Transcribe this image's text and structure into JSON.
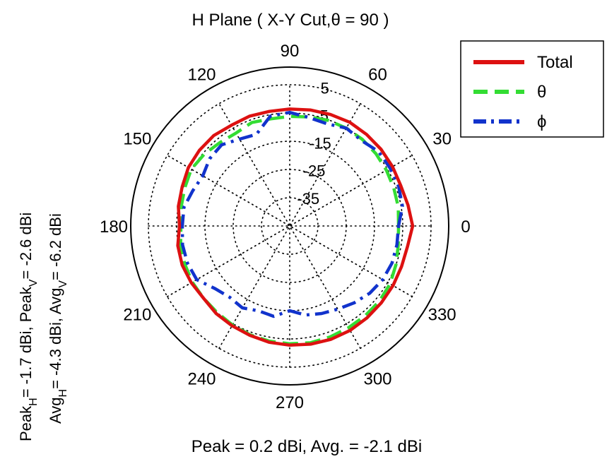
{
  "chart_data": {
    "type": "polar",
    "title": "H Plane ( X-Y Cut,θ = 90 )",
    "r_axis": {
      "min": -45,
      "max": 5,
      "ticks": [
        -35,
        -25,
        -15,
        -5,
        5
      ],
      "tick_angle_deg": 78
    },
    "angle_ticks": [
      0,
      30,
      60,
      90,
      120,
      150,
      180,
      210,
      240,
      270,
      300,
      330
    ],
    "angle_labels": [
      "0",
      "30",
      "60",
      "90",
      "120",
      "150",
      "180",
      "210",
      "240",
      "270",
      "300",
      "330"
    ],
    "angle_step_deg": 10,
    "grid": true,
    "legend_position": "top-right",
    "series": [
      {
        "name": "Total",
        "color": "#dd1111",
        "dash": "solid",
        "values": [
          -1.5,
          -2.5,
          -3.2,
          -3.0,
          -2.8,
          -2.7,
          -2.6,
          -3.0,
          -3.3,
          -3.6,
          -3.8,
          -3.6,
          -3.8,
          -3.2,
          -3.3,
          -3.6,
          -4.5,
          -5.0,
          -6.0,
          -4.8,
          -4.5,
          -4.8,
          -5.2,
          -4.5,
          -4.2,
          -3.8,
          -3.2,
          -2.8,
          -2.5,
          -2.3,
          -2.3,
          -2.5,
          -2.7,
          -2.8,
          -2.9,
          -2.7
        ]
      },
      {
        "name": "θ",
        "color": "#33dd33",
        "dash": "long-dash",
        "values": [
          -6.5,
          -6.0,
          -5.8,
          -5.5,
          -5.2,
          -5.0,
          -5.0,
          -5.2,
          -5.8,
          -6.2,
          -6.5,
          -6.0,
          -7.0,
          -6.5,
          -5.5,
          -4.8,
          -5.5,
          -6.0,
          -6.5,
          -5.8,
          -5.5,
          -5.2,
          -5.2,
          -5.0,
          -4.5,
          -4.0,
          -3.6,
          -3.3,
          -3.0,
          -3.2,
          -3.4,
          -3.5,
          -3.6,
          -4.0,
          -5.0,
          -6.0
        ]
      },
      {
        "name": "ϕ",
        "color": "#1133cc",
        "dash": "dash-dot",
        "values": [
          -6.5,
          -4.5,
          -4.0,
          -4.0,
          -4.0,
          -5.5,
          -5.0,
          -6.5,
          -6.0,
          -4.8,
          -5.5,
          -10.5,
          -9.5,
          -7.5,
          -8.0,
          -9.5,
          -8.5,
          -7.0,
          -7.0,
          -6.5,
          -6.5,
          -7.0,
          -10.5,
          -12.0,
          -11.5,
          -13.0,
          -12.5,
          -15.0,
          -13.0,
          -12.0,
          -11.0,
          -9.5,
          -8.0,
          -7.0,
          -6.5,
          -6.5
        ]
      }
    ],
    "side_annotation": {
      "line1": {
        "a": "Peak",
        "a_sub": "H",
        "b": "= -1.7 dBi, Peak",
        "b_sub": "V",
        "c": "= -2.6 dBi"
      },
      "line2": {
        "a": "Avg",
        "a_sub": "H",
        "b": "= -4.3 dBi, Avg",
        "b_sub": "V",
        "c": "= -6.2 dBi"
      }
    },
    "footer": "Peak = 0.2 dBi, Avg. = -2.1 dBi"
  },
  "colors": {
    "background": "#ffffff",
    "grid": "#000000",
    "axis_circle": "#000000"
  }
}
